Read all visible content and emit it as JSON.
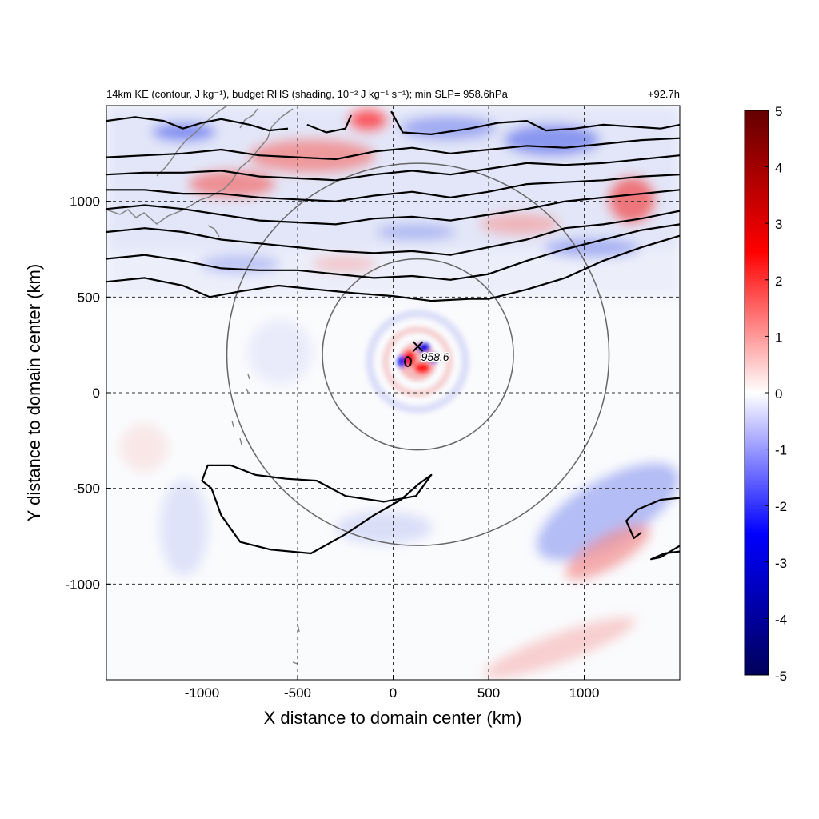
{
  "chart_data": {
    "type": "heatmap",
    "title_left": "14km KE (contour, J kg⁻¹), budget RHS (shading, 10⁻² J kg⁻¹ s⁻¹); min SLP= 958.6hPa",
    "title_right": "+92.7h",
    "xlabel": "X distance to domain center (km)",
    "ylabel": "Y distance to domain center (km)",
    "xlim": [
      -1500,
      1500
    ],
    "ylim": [
      -1500,
      1500
    ],
    "x_ticks": [
      "-1000",
      "-500",
      "0",
      "500",
      "1000"
    ],
    "x_tick_values": [
      -1000,
      -500,
      0,
      500,
      1000
    ],
    "y_ticks": [
      "1000",
      "500",
      "0",
      "-500",
      "-1000"
    ],
    "y_tick_values": [
      1000,
      500,
      0,
      -500,
      -1000
    ],
    "grid": "dashed",
    "colorbar": {
      "range": [
        -5,
        5
      ],
      "ticks": [
        "5",
        "4",
        "3",
        "2",
        "1",
        "0",
        "-1",
        "-2",
        "-3",
        "-4",
        "-5"
      ],
      "tick_values": [
        5,
        4,
        3,
        2,
        1,
        0,
        -1,
        -2,
        -3,
        -4,
        -5
      ],
      "colors": [
        "#00005a",
        "#0000ff",
        "#ffffff",
        "#ff0000",
        "#640000"
      ]
    },
    "storm_center": {
      "x": 130,
      "y": 200,
      "label": "958.6",
      "min_slp_hPa": 958.6
    },
    "range_circles_km": [
      500,
      1000
    ],
    "ke_contours": [
      [
        [
          -1500,
          580
        ],
        [
          -1300,
          600
        ],
        [
          -1100,
          560
        ],
        [
          -960,
          500
        ],
        [
          -800,
          530
        ],
        [
          -600,
          560
        ],
        [
          -400,
          540
        ],
        [
          -200,
          520
        ],
        [
          0,
          505
        ],
        [
          200,
          480
        ],
        [
          400,
          490
        ],
        [
          500,
          490
        ],
        [
          700,
          540
        ],
        [
          900,
          600
        ],
        [
          1100,
          690
        ],
        [
          1300,
          760
        ],
        [
          1500,
          820
        ]
      ],
      [
        [
          -1500,
          700
        ],
        [
          -1300,
          720
        ],
        [
          -1100,
          690
        ],
        [
          -900,
          650
        ],
        [
          -700,
          640
        ],
        [
          -500,
          640
        ],
        [
          -300,
          620
        ],
        [
          -100,
          600
        ],
        [
          100,
          610
        ],
        [
          300,
          590
        ],
        [
          500,
          620
        ],
        [
          700,
          690
        ],
        [
          900,
          750
        ],
        [
          1100,
          800
        ],
        [
          1300,
          850
        ],
        [
          1500,
          880
        ]
      ],
      [
        [
          -1500,
          840
        ],
        [
          -1300,
          860
        ],
        [
          -1100,
          840
        ],
        [
          -900,
          800
        ],
        [
          -700,
          780
        ],
        [
          -500,
          760
        ],
        [
          -300,
          740
        ],
        [
          -100,
          730
        ],
        [
          100,
          740
        ],
        [
          300,
          720
        ],
        [
          500,
          760
        ],
        [
          700,
          800
        ],
        [
          900,
          860
        ],
        [
          1100,
          880
        ],
        [
          1300,
          910
        ],
        [
          1500,
          950
        ]
      ],
      [
        [
          -1500,
          960
        ],
        [
          -1300,
          980
        ],
        [
          -1100,
          960
        ],
        [
          -900,
          930
        ],
        [
          -700,
          900
        ],
        [
          -500,
          890
        ],
        [
          -300,
          880
        ],
        [
          -100,
          910
        ],
        [
          100,
          920
        ],
        [
          300,
          900
        ],
        [
          500,
          930
        ],
        [
          700,
          960
        ],
        [
          900,
          1000
        ],
        [
          1100,
          1020
        ],
        [
          1300,
          1040
        ],
        [
          1500,
          1060
        ]
      ],
      [
        [
          -1500,
          1060
        ],
        [
          -1300,
          1060
        ],
        [
          -1100,
          1040
        ],
        [
          -900,
          1040
        ],
        [
          -700,
          1020
        ],
        [
          -500,
          1010
        ],
        [
          -300,
          1000
        ],
        [
          -100,
          1030
        ],
        [
          100,
          1050
        ],
        [
          300,
          1020
        ],
        [
          500,
          1050
        ],
        [
          700,
          1090
        ],
        [
          900,
          1100
        ],
        [
          1100,
          1110
        ],
        [
          1300,
          1130
        ],
        [
          1500,
          1140
        ]
      ],
      [
        [
          -1500,
          1140
        ],
        [
          -1300,
          1150
        ],
        [
          -1100,
          1150
        ],
        [
          -900,
          1160
        ],
        [
          -700,
          1130
        ],
        [
          -500,
          1120
        ],
        [
          -300,
          1110
        ],
        [
          -100,
          1140
        ],
        [
          100,
          1160
        ],
        [
          300,
          1140
        ],
        [
          500,
          1170
        ],
        [
          700,
          1200
        ],
        [
          900,
          1190
        ],
        [
          1100,
          1200
        ],
        [
          1300,
          1220
        ],
        [
          1500,
          1240
        ]
      ],
      [
        [
          -1500,
          1230
        ],
        [
          -1300,
          1240
        ],
        [
          -1100,
          1250
        ],
        [
          -900,
          1270
        ],
        [
          -700,
          1240
        ],
        [
          -500,
          1230
        ],
        [
          -300,
          1220
        ],
        [
          -100,
          1260
        ],
        [
          100,
          1280
        ],
        [
          300,
          1250
        ],
        [
          500,
          1270
        ],
        [
          700,
          1290
        ],
        [
          900,
          1280
        ],
        [
          1100,
          1300
        ],
        [
          1300,
          1320
        ],
        [
          1500,
          1330
        ]
      ],
      [
        [
          -1500,
          1420
        ],
        [
          -1350,
          1440
        ],
        [
          -1200,
          1420
        ],
        [
          -1100,
          1380
        ],
        [
          -1000,
          1410
        ],
        [
          -900,
          1430
        ],
        [
          -750,
          1400
        ],
        [
          -650,
          1370
        ],
        [
          -550,
          1380
        ]
      ],
      [
        [
          -450,
          1400
        ],
        [
          -350,
          1360
        ],
        [
          -250,
          1380
        ],
        [
          -220,
          1450
        ]
      ],
      [
        [
          -10,
          1470
        ],
        [
          50,
          1360
        ],
        [
          200,
          1350
        ],
        [
          400,
          1380
        ],
        [
          550,
          1410
        ],
        [
          700,
          1420
        ],
        [
          800,
          1370
        ],
        [
          950,
          1380
        ],
        [
          1100,
          1400
        ],
        [
          1250,
          1390
        ],
        [
          1400,
          1380
        ],
        [
          1500,
          1400
        ]
      ],
      [
        [
          -950,
          -500
        ],
        [
          -1000,
          -460
        ],
        [
          -970,
          -380
        ],
        [
          -850,
          -380
        ],
        [
          -720,
          -430
        ],
        [
          -560,
          -450
        ],
        [
          -400,
          -460
        ],
        [
          -250,
          -540
        ],
        [
          -50,
          -570
        ],
        [
          120,
          -540
        ],
        [
          200,
          -430
        ],
        [
          130,
          -480
        ],
        [
          40,
          -560
        ],
        [
          -100,
          -640
        ],
        [
          -250,
          -740
        ],
        [
          -430,
          -840
        ],
        [
          -640,
          -820
        ],
        [
          -800,
          -780
        ],
        [
          -900,
          -640
        ],
        [
          -950,
          -500
        ]
      ],
      [
        [
          1500,
          -550
        ],
        [
          1400,
          -560
        ],
        [
          1280,
          -610
        ],
        [
          1220,
          -670
        ],
        [
          1260,
          -760
        ],
        [
          1300,
          -730
        ]
      ],
      [
        [
          1500,
          -800
        ],
        [
          1400,
          -860
        ],
        [
          1350,
          -870
        ],
        [
          1420,
          -840
        ],
        [
          1500,
          -830
        ]
      ]
    ]
  }
}
